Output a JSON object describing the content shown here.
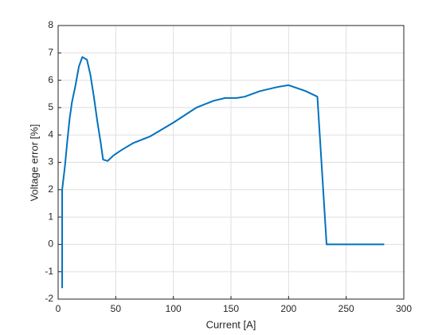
{
  "chart_data": {
    "type": "line",
    "xlabel": "Current [A]",
    "ylabel": "Voltage error [%]",
    "x": [
      3.5,
      3.5,
      6,
      8,
      10,
      12,
      15,
      18,
      21,
      25,
      28,
      31,
      34,
      37,
      39,
      43,
      48,
      55,
      65,
      80,
      100,
      120,
      135,
      145,
      155,
      162,
      175,
      190,
      200,
      215,
      225,
      233,
      250,
      283
    ],
    "values": [
      -1.6,
      2.0,
      2.9,
      3.8,
      4.6,
      5.2,
      5.8,
      6.5,
      6.85,
      6.75,
      6.2,
      5.4,
      4.5,
      3.7,
      3.1,
      3.05,
      3.25,
      3.45,
      3.7,
      3.95,
      4.45,
      5.0,
      5.25,
      5.35,
      5.35,
      5.4,
      5.6,
      5.75,
      5.82,
      5.6,
      5.4,
      0,
      0,
      0
    ],
    "color": "#0072bd",
    "xlim": [
      0,
      300
    ],
    "xticks": [
      0,
      50,
      100,
      150,
      200,
      250,
      300
    ],
    "ylim": [
      -2,
      8
    ],
    "yticks": [
      -2,
      -1,
      0,
      1,
      2,
      3,
      4,
      5,
      6,
      7,
      8
    ],
    "grid": true
  }
}
